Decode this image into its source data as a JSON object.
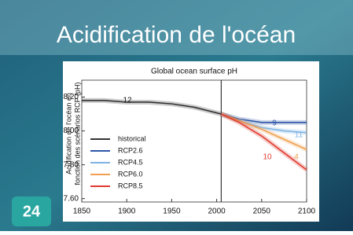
{
  "title": "Acidification de l'océan",
  "badge": "24",
  "chart_data": {
    "type": "line",
    "title": "Global ocean surface pH",
    "y_label": [
      "Acidification de l'océan en",
      "fonction des scénarios RCP (pH)"
    ],
    "xlim": [
      1850,
      2100
    ],
    "xticks": [
      1850,
      1900,
      1950,
      2000,
      2050,
      2100
    ],
    "ylim": [
      7.58,
      8.3
    ],
    "yticks": [
      {
        "value": 7.6,
        "label": "7.60"
      },
      {
        "value": 7.8,
        "label": "7.80"
      },
      {
        "value": 8.0,
        "label": "8.00"
      },
      {
        "value": 8.2,
        "label": "8.20"
      }
    ],
    "reference_x": 2005,
    "series": [
      {
        "name": "historical",
        "color": "#333333",
        "x": [
          1850,
          1875,
          1900,
          1925,
          1950,
          1975,
          2005
        ],
        "values": [
          8.18,
          8.18,
          8.17,
          8.17,
          8.16,
          8.14,
          8.1
        ]
      },
      {
        "name": "RCP2.6",
        "color": "#2e56a8",
        "x": [
          2005,
          2025,
          2050,
          2075,
          2100
        ],
        "values": [
          8.1,
          8.07,
          8.05,
          8.05,
          8.05
        ]
      },
      {
        "name": "RCP4.5",
        "color": "#7fb3e3",
        "x": [
          2005,
          2025,
          2050,
          2075,
          2100
        ],
        "values": [
          8.1,
          8.06,
          8.02,
          8.0,
          7.99
        ]
      },
      {
        "name": "RCP6.0",
        "color": "#f0a050",
        "x": [
          2005,
          2025,
          2050,
          2075,
          2100
        ],
        "values": [
          8.1,
          8.06,
          8.01,
          7.95,
          7.89
        ]
      },
      {
        "name": "RCP8.5",
        "color": "#e03a2f",
        "x": [
          2005,
          2025,
          2050,
          2075,
          2100
        ],
        "values": [
          8.1,
          8.05,
          7.97,
          7.87,
          7.77
        ]
      }
    ],
    "annotations": [
      {
        "text": "12",
        "color": "#111111"
      },
      {
        "text": "9",
        "color": "#2e56a8"
      },
      {
        "text": "11",
        "color": "#7fb3e3"
      },
      {
        "text": "4",
        "color": "#f0a050"
      },
      {
        "text": "10",
        "color": "#e03a2f"
      }
    ]
  }
}
